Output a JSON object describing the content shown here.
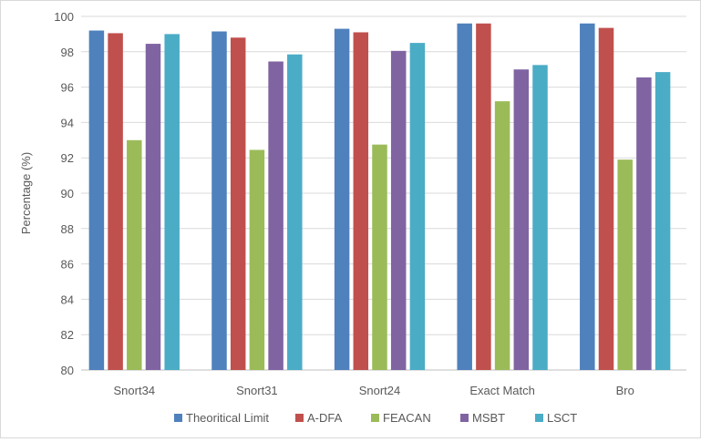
{
  "chart_data": {
    "type": "bar",
    "title": "",
    "xlabel": "",
    "ylabel": "Percentage (%)",
    "ylim": [
      80,
      100
    ],
    "yticks": [
      80,
      82,
      84,
      86,
      88,
      90,
      92,
      94,
      96,
      98,
      100
    ],
    "grid": true,
    "legend_position": "bottom",
    "categories": [
      "Snort34",
      "Snort31",
      "Snort24",
      "Exact Match",
      "Bro"
    ],
    "series": [
      {
        "name": "Theoritical Limit",
        "color": "#4f81bd",
        "values": [
          99.2,
          99.15,
          99.3,
          99.6,
          99.6
        ]
      },
      {
        "name": "A-DFA",
        "color": "#c0504d",
        "values": [
          99.05,
          98.8,
          99.1,
          99.6,
          99.35
        ]
      },
      {
        "name": "FEACAN",
        "color": "#9bbb59",
        "values": [
          93.0,
          92.45,
          92.75,
          95.2,
          91.9
        ]
      },
      {
        "name": "MSBT",
        "color": "#8064a2",
        "values": [
          98.45,
          97.45,
          98.05,
          97.0,
          96.55
        ]
      },
      {
        "name": "LSCT",
        "color": "#4bacc6",
        "values": [
          99.0,
          97.85,
          98.5,
          97.25,
          96.85
        ]
      }
    ]
  }
}
